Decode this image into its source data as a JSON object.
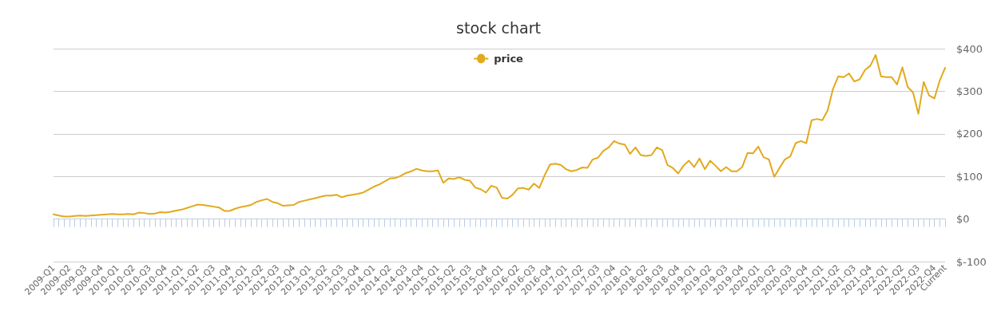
{
  "chart_data": {
    "type": "line",
    "title": "stock chart",
    "categories": [
      "2009-Q1",
      null,
      null,
      "2009-Q2",
      null,
      null,
      "2009-Q3",
      null,
      null,
      "2009-Q4",
      null,
      null,
      "2010-Q1",
      null,
      null,
      "2010-Q2",
      null,
      null,
      "2010-Q3",
      null,
      null,
      "2010-Q4",
      null,
      null,
      "2011-Q1",
      null,
      null,
      "2011-Q2",
      null,
      null,
      "2011-Q3",
      null,
      null,
      "2011-Q4",
      null,
      null,
      "2012-Q1",
      null,
      null,
      "2012-Q2",
      null,
      null,
      "2012-Q3",
      null,
      null,
      "2012-Q4",
      null,
      null,
      "2013-Q1",
      null,
      null,
      "2013-Q2",
      null,
      null,
      "2013-Q3",
      null,
      null,
      "2013-Q4",
      null,
      null,
      "2014-Q1",
      null,
      null,
      "2014-Q2",
      null,
      null,
      "2014-Q3",
      null,
      null,
      "2014-Q4",
      null,
      null,
      "2015-Q1",
      null,
      null,
      "2015-Q2",
      null,
      null,
      "2015-Q3",
      null,
      null,
      "2015-Q4",
      null,
      null,
      "2016-Q1",
      null,
      null,
      "2016-Q2",
      null,
      null,
      "2016-Q3",
      null,
      null,
      "2016-Q4",
      null,
      null,
      "2017-Q1",
      null,
      null,
      "2017-Q2",
      null,
      null,
      "2017-Q3",
      null,
      null,
      "2017-Q4",
      null,
      null,
      "2018-Q1",
      null,
      null,
      "2018-Q2",
      null,
      null,
      "2018-Q3",
      null,
      null,
      "2018-Q4",
      null,
      null,
      "2019-Q1",
      null,
      null,
      "2019-Q2",
      null,
      null,
      "2019-Q3",
      null,
      null,
      "2019-Q4",
      null,
      null,
      "2020-Q1",
      null,
      null,
      "2020-Q2",
      null,
      null,
      "2020-Q3",
      null,
      null,
      "2020-Q4",
      null,
      null,
      "2021-Q1",
      null,
      null,
      "2021-Q2",
      null,
      null,
      "2021-Q3",
      null,
      null,
      "2021-Q4",
      null,
      null,
      "2022-Q1",
      null,
      null,
      "2022-Q2",
      null,
      null,
      "2022-Q3",
      null,
      null,
      "2022-Q4",
      null,
      "Current"
    ],
    "series": [
      {
        "name": "price",
        "color": "#e2a91c",
        "values": [
          11,
          8,
          6,
          6,
          7,
          8,
          7,
          8,
          9,
          10,
          11,
          12,
          11,
          11,
          12,
          11,
          15,
          14,
          12,
          13,
          16,
          15,
          17,
          20,
          22,
          26,
          30,
          34,
          33,
          31,
          29,
          27,
          19,
          19,
          24,
          28,
          30,
          33,
          40,
          44,
          47,
          40,
          37,
          31,
          32,
          33,
          40,
          43,
          46,
          49,
          52,
          55,
          55,
          57,
          51,
          55,
          57,
          59,
          62,
          69,
          76,
          81,
          88,
          95,
          96,
          101,
          108,
          112,
          118,
          114,
          112,
          112,
          114,
          85,
          95,
          94,
          98,
          92,
          90,
          74,
          70,
          62,
          78,
          74,
          50,
          48,
          57,
          72,
          73,
          69,
          83,
          73,
          103,
          128,
          130,
          127,
          117,
          112,
          115,
          121,
          120,
          140,
          144,
          160,
          168,
          183,
          177,
          175,
          153,
          168,
          150,
          148,
          150,
          168,
          162,
          127,
          120,
          107,
          125,
          137,
          122,
          142,
          117,
          137,
          125,
          112,
          122,
          112,
          112,
          122,
          155,
          154,
          170,
          145,
          140,
          99,
          120,
          140,
          147,
          178,
          183,
          178,
          232,
          235,
          232,
          255,
          305,
          335,
          333,
          342,
          323,
          328,
          350,
          360,
          385,
          335,
          333,
          333,
          316,
          356,
          310,
          297,
          247,
          322,
          290,
          283,
          325,
          355
        ]
      }
    ],
    "ylim": [
      -100,
      400
    ],
    "yticks": [
      {
        "value": -100,
        "label": "$-100"
      },
      {
        "value": 0,
        "label": "$0"
      },
      {
        "value": 100,
        "label": "$100"
      },
      {
        "value": 200,
        "label": "$200"
      },
      {
        "value": 300,
        "label": "$300"
      },
      {
        "value": 400,
        "label": "$400"
      }
    ],
    "grid": "y",
    "legend": "top",
    "marker": "none",
    "line_style": "solid"
  }
}
